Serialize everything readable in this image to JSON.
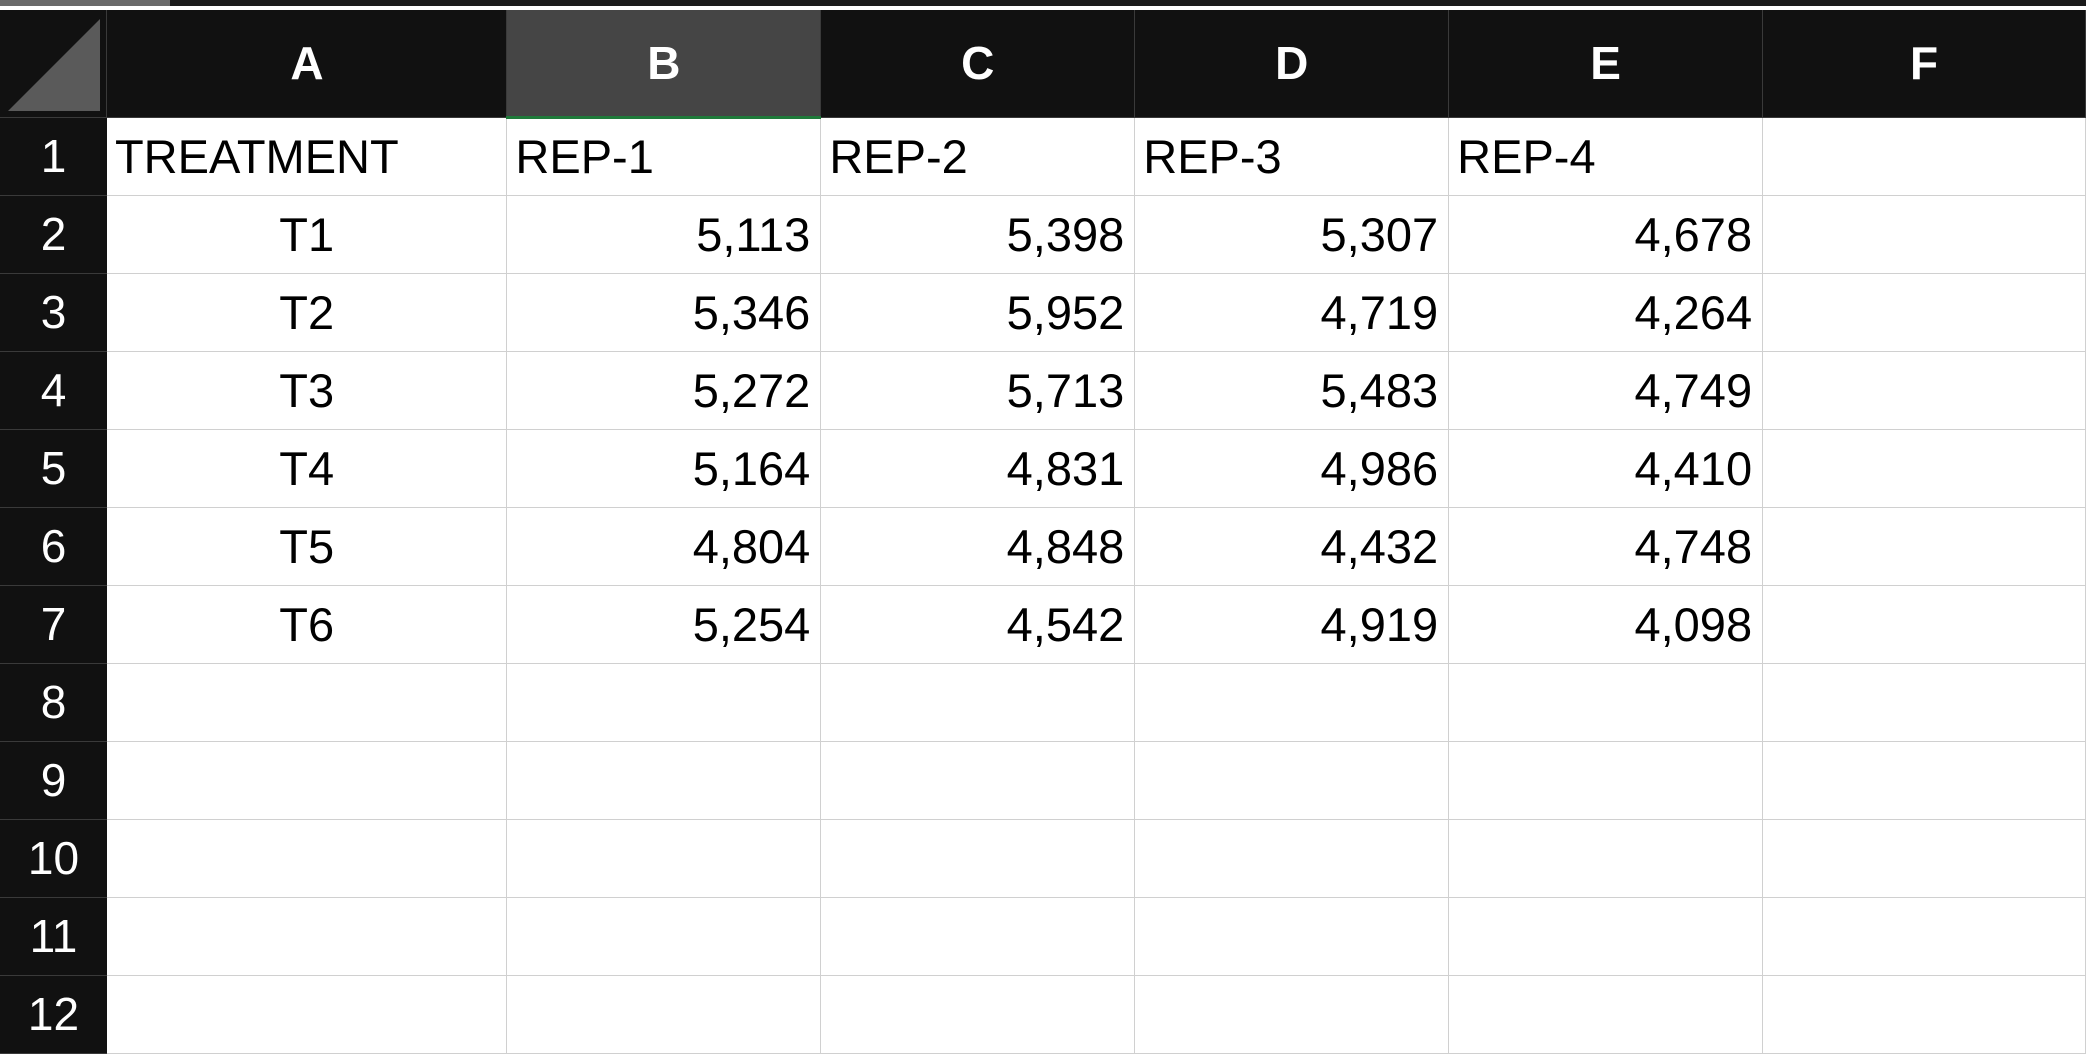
{
  "columns": [
    "A",
    "B",
    "C",
    "D",
    "E",
    "F"
  ],
  "selected_column": "B",
  "rows": [
    {
      "num": "1",
      "cells": [
        "TREATMENT",
        "REP-1",
        "REP-2",
        "REP-3",
        "REP-4",
        ""
      ]
    },
    {
      "num": "2",
      "cells": [
        "T1",
        "5,113",
        "5,398",
        "5,307",
        "4,678",
        ""
      ]
    },
    {
      "num": "3",
      "cells": [
        "T2",
        "5,346",
        "5,952",
        "4,719",
        "4,264",
        ""
      ]
    },
    {
      "num": "4",
      "cells": [
        "T3",
        "5,272",
        "5,713",
        "5,483",
        "4,749",
        ""
      ]
    },
    {
      "num": "5",
      "cells": [
        "T4",
        "5,164",
        "4,831",
        "4,986",
        "4,410",
        ""
      ]
    },
    {
      "num": "6",
      "cells": [
        "T5",
        "4,804",
        "4,848",
        "4,432",
        "4,748",
        ""
      ]
    },
    {
      "num": "7",
      "cells": [
        "T6",
        "5,254",
        "4,542",
        "4,919",
        "4,098",
        ""
      ]
    },
    {
      "num": "8",
      "cells": [
        "",
        "",
        "",
        "",
        "",
        ""
      ]
    },
    {
      "num": "9",
      "cells": [
        "",
        "",
        "",
        "",
        "",
        ""
      ]
    },
    {
      "num": "10",
      "cells": [
        "",
        "",
        "",
        "",
        "",
        ""
      ]
    },
    {
      "num": "11",
      "cells": [
        "",
        "",
        "",
        "",
        "",
        ""
      ]
    },
    {
      "num": "12",
      "cells": [
        "",
        "",
        "",
        "",
        "",
        ""
      ]
    }
  ],
  "colors": {
    "header_bg": "#111111",
    "selected_header_bg": "#454545",
    "selection_accent": "#1f7a3a",
    "gridline": "#d0d0d0"
  }
}
